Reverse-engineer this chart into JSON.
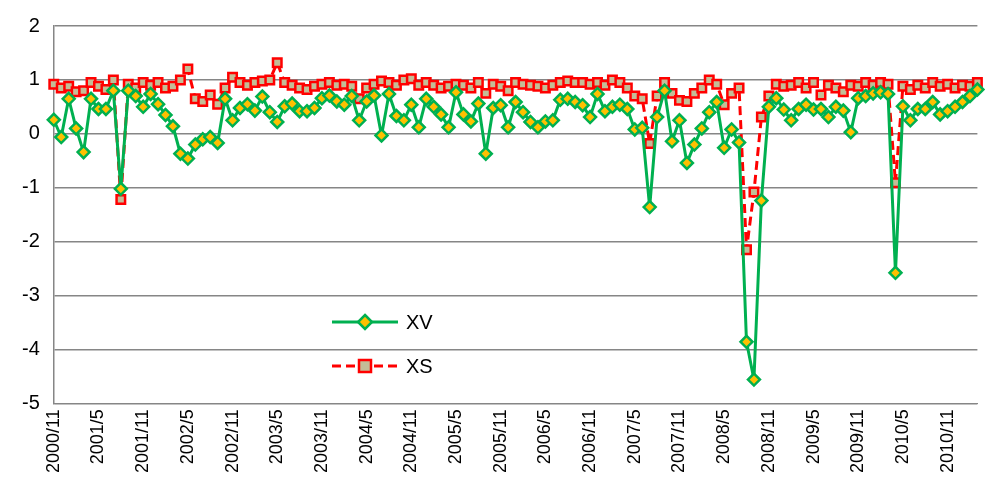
{
  "chart_data": {
    "type": "line",
    "categories": [
      "2000/11",
      null,
      null,
      null,
      null,
      null,
      "2001/5",
      null,
      null,
      null,
      null,
      null,
      "2001/11",
      null,
      null,
      null,
      null,
      null,
      "2002/5",
      null,
      null,
      null,
      null,
      null,
      "2002/11",
      null,
      null,
      null,
      null,
      null,
      "2003/5",
      null,
      null,
      null,
      null,
      null,
      "2003/11",
      null,
      null,
      null,
      null,
      null,
      "2004/5",
      null,
      null,
      null,
      null,
      null,
      "2004/11",
      null,
      null,
      null,
      null,
      null,
      "2005/5",
      null,
      null,
      null,
      null,
      null,
      "2005/11",
      null,
      null,
      null,
      null,
      null,
      "2006/5",
      null,
      null,
      null,
      null,
      null,
      "2006/11",
      null,
      null,
      null,
      null,
      null,
      "2007/5",
      null,
      null,
      null,
      null,
      null,
      "2007/11",
      null,
      null,
      null,
      null,
      null,
      "2008/5",
      null,
      null,
      null,
      null,
      null,
      "2008/11",
      null,
      null,
      null,
      null,
      null,
      "2009/5",
      null,
      null,
      null,
      null,
      null,
      "2009/11",
      null,
      null,
      null,
      null,
      null,
      "2010/5",
      null,
      null,
      null,
      null,
      null,
      "2010/11",
      null,
      null,
      null,
      null
    ],
    "series": [
      {
        "name": "XV",
        "color": "#00b050",
        "marker": "diamond",
        "line_style": "solid",
        "values": [
          0.26,
          -0.06,
          0.65,
          0.1,
          -0.34,
          0.65,
          0.46,
          0.46,
          0.8,
          -1.02,
          0.8,
          0.7,
          0.5,
          0.74,
          0.55,
          0.35,
          0.14,
          -0.37,
          -0.46,
          -0.2,
          -0.1,
          -0.06,
          -0.17,
          0.65,
          0.25,
          0.48,
          0.55,
          0.43,
          0.69,
          0.4,
          0.22,
          0.51,
          0.56,
          0.42,
          0.42,
          0.48,
          0.66,
          0.71,
          0.6,
          0.54,
          0.7,
          0.25,
          0.6,
          0.71,
          -0.03,
          0.74,
          0.33,
          0.25,
          0.54,
          0.12,
          0.65,
          0.5,
          0.36,
          0.12,
          0.77,
          0.36,
          0.23,
          0.56,
          -0.37,
          0.48,
          0.53,
          0.12,
          0.59,
          0.4,
          0.22,
          0.12,
          0.23,
          0.25,
          0.63,
          0.65,
          0.59,
          0.53,
          0.31,
          0.74,
          0.42,
          0.5,
          0.54,
          0.46,
          0.08,
          0.11,
          -1.36,
          0.31,
          0.8,
          -0.14,
          0.25,
          -0.54,
          -0.2,
          0.1,
          0.4,
          0.59,
          -0.26,
          0.08,
          -0.16,
          -3.86,
          -4.56,
          -1.24,
          0.5,
          0.66,
          0.45,
          0.25,
          0.46,
          0.54,
          0.45,
          0.46,
          0.31,
          0.5,
          0.43,
          0.03,
          0.66,
          0.7,
          0.75,
          0.77,
          0.74,
          -2.58,
          0.51,
          0.25,
          0.46,
          0.46,
          0.59,
          0.36,
          0.42,
          0.5,
          0.59,
          0.7,
          0.82
        ]
      },
      {
        "name": "XS",
        "color": "#ff0000",
        "marker": "square",
        "line_style": "dashed",
        "values": [
          0.92,
          0.85,
          0.88,
          0.78,
          0.8,
          0.95,
          0.88,
          0.82,
          1.0,
          -1.22,
          0.92,
          0.85,
          0.95,
          0.9,
          0.95,
          0.85,
          0.88,
          1.0,
          1.2,
          0.65,
          0.6,
          0.72,
          0.55,
          0.85,
          1.05,
          0.95,
          0.9,
          0.95,
          0.98,
          1.0,
          1.32,
          0.95,
          0.9,
          0.85,
          0.82,
          0.88,
          0.92,
          0.95,
          0.9,
          0.92,
          0.88,
          0.65,
          0.85,
          0.92,
          0.98,
          0.95,
          0.9,
          1.0,
          1.02,
          0.9,
          0.95,
          0.9,
          0.85,
          0.88,
          0.92,
          0.9,
          0.85,
          0.95,
          0.75,
          0.92,
          0.88,
          0.8,
          0.95,
          0.92,
          0.9,
          0.88,
          0.85,
          0.9,
          0.95,
          0.98,
          0.95,
          0.95,
          0.92,
          0.95,
          0.9,
          1.0,
          0.95,
          0.85,
          0.7,
          0.65,
          -0.18,
          0.7,
          0.95,
          0.75,
          0.62,
          0.6,
          0.75,
          0.85,
          1.0,
          0.92,
          0.54,
          0.75,
          0.85,
          -2.15,
          -1.08,
          0.31,
          0.7,
          0.92,
          0.88,
          0.9,
          0.95,
          0.85,
          0.95,
          0.72,
          0.9,
          0.85,
          0.78,
          0.9,
          0.88,
          0.95,
          0.9,
          0.95,
          0.92,
          -0.91,
          0.88,
          0.82,
          0.9,
          0.85,
          0.95,
          0.88,
          0.92,
          0.85,
          0.9,
          0.88,
          0.95
        ]
      }
    ],
    "ylim": [
      -5,
      2
    ],
    "yticks": [
      -5,
      -4,
      -3,
      -2,
      -1,
      0,
      1,
      2
    ],
    "grid": "y",
    "legend": "bottom"
  }
}
